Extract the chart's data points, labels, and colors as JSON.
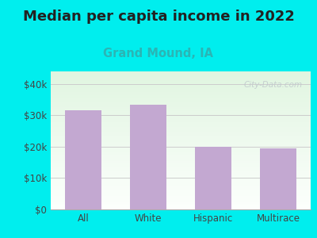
{
  "title": "Median per capita income in 2022",
  "subtitle": "Grand Mound, IA",
  "categories": [
    "All",
    "White",
    "Hispanic",
    "Multirace"
  ],
  "values": [
    31500,
    33500,
    20000,
    19500
  ],
  "bar_color": "#C3A8D1",
  "title_fontsize": 13,
  "subtitle_fontsize": 10.5,
  "subtitle_color": "#2ab5b5",
  "title_color": "#222222",
  "background_outer": "#00EEEE",
  "yticks": [
    0,
    10000,
    20000,
    30000,
    40000
  ],
  "ytick_labels": [
    "$0",
    "$10k",
    "$20k",
    "$30k",
    "$40k"
  ],
  "ylim": [
    0,
    44000
  ],
  "grid_color": "#cccccc",
  "watermark": "City-Data.com",
  "watermark_color": "#c0c8cc",
  "watermark_icon_color": "#b0bfc8"
}
